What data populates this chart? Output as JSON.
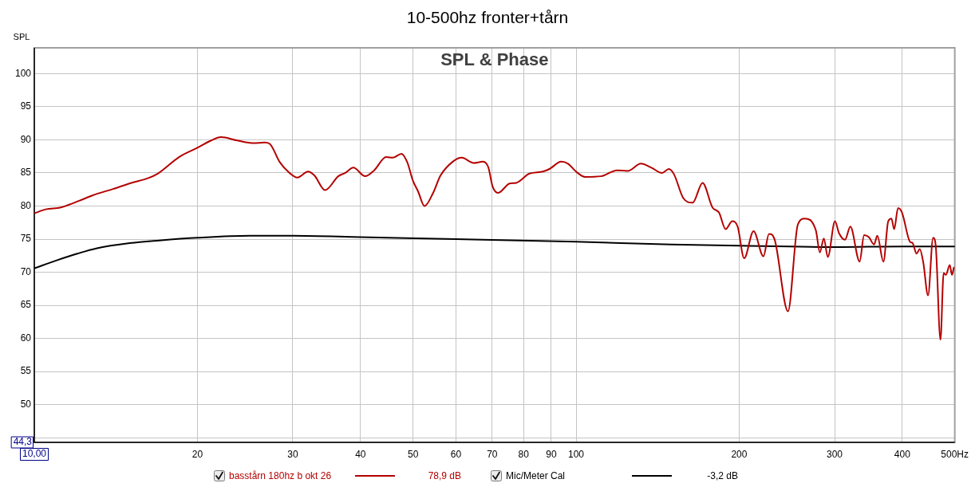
{
  "chart_data": {
    "type": "line",
    "title": "10-500hz fronter+tårn",
    "subtitle": "SPL & Phase",
    "ylabel": "SPL",
    "log": "x",
    "xlim": [
      10,
      500
    ],
    "xticks": [
      {
        "value": 10,
        "label": "10,00"
      },
      20,
      30,
      40,
      50,
      60,
      70,
      80,
      90,
      100,
      200,
      300,
      400,
      {
        "value": 500,
        "label": "500Hz"
      }
    ],
    "ylim": [
      44.3,
      103.9
    ],
    "yticks": [
      {
        "value": 44.3,
        "label": "44,3"
      },
      {
        "value": 45,
        "label": null
      },
      50,
      55,
      60,
      65,
      70,
      75,
      80,
      85,
      90,
      95,
      100
    ],
    "grid": true,
    "legend": "bottom",
    "annotations": [
      "78,9 dB",
      "-3,2 dB"
    ],
    "series": [
      {
        "name": "basstårn 180hz b okt 26",
        "color": "#b40000",
        "x": [
          10,
          10.5,
          11.2,
          12.1,
          12.8,
          14.0,
          15.1,
          16.2,
          16.9,
          18.5,
          20,
          21.2,
          22.1,
          23.7,
          25.4,
          26.6,
          27.2,
          28.4,
          29.4,
          30.6,
          32.0,
          32.9,
          34.4,
          36.4,
          37.5,
          38.8,
          40.8,
          42.4,
          44.6,
          45.9,
          47.6,
          48.8,
          50.0,
          51.1,
          52.5,
          54.4,
          56.2,
          59.2,
          61.5,
          64.7,
          67.3,
          68.9,
          70.1,
          71.8,
          75.4,
          77.5,
          82.0,
          86.8,
          89.3,
          93.9,
          96.6,
          100,
          103.9,
          111.2,
          119,
          124.5,
          131.7,
          137.7,
          144.1,
          148.3,
          151.6,
          157.7,
          164.1,
          171.2,
          178.5,
          183.6,
          188.8,
          194.2,
          198.7,
          204.3,
          212.6,
          221.7,
          227,
          232.6,
          246.1,
          256.6,
          264.2,
          277.1,
          281.8,
          286.6,
          291.5,
          300.5,
          305.7,
          313.6,
          320.8,
          333.7,
          340.1,
          347,
          354.9,
          359.7,
          369.2,
          376.8,
          382,
          386.4,
          392.9,
          399.6,
          413.3,
          417.9,
          425,
          430.9,
          437.3,
          446.3,
          456,
          461,
          470.5,
          476.9,
          481.3,
          489.5,
          494,
          498
        ],
        "values": [
          78.9,
          79.5,
          79.8,
          80.8,
          81.6,
          82.6,
          83.5,
          84.2,
          84.9,
          87.4,
          88.8,
          89.9,
          90.4,
          89.9,
          89.5,
          89.6,
          89.4,
          86.6,
          85.2,
          84.3,
          85.2,
          84.6,
          82.4,
          84.5,
          85.0,
          85.8,
          84.5,
          85.4,
          87.4,
          87.3,
          87.9,
          86.6,
          83.8,
          82.2,
          80.0,
          81.9,
          84.6,
          86.7,
          87.3,
          86.5,
          86.7,
          85.8,
          83.0,
          82.0,
          83.4,
          83.5,
          84.9,
          85.2,
          85.6,
          86.7,
          86.4,
          85.2,
          84.4,
          84.5,
          85.4,
          85.3,
          86.4,
          85.8,
          85.0,
          85.6,
          84.8,
          81.2,
          80.5,
          83.5,
          79.8,
          79.0,
          76.5,
          77.7,
          76.9,
          72.1,
          76.2,
          72.4,
          75.8,
          74.9,
          64.1,
          77.2,
          78.1,
          76.3,
          73.0,
          75.1,
          72.3,
          77.7,
          75.9,
          74.9,
          76.9,
          71.6,
          75.6,
          75.3,
          74.2,
          75.5,
          71.6,
          77.7,
          78.1,
          76.5,
          79.7,
          79.0,
          74.6,
          74.4,
          72.8,
          73.5,
          71.5,
          66.5,
          75.2,
          74.1,
          59.8,
          69.9,
          69.6,
          71.1,
          69.6,
          70.7
        ]
      },
      {
        "name": "Mic/Meter Cal",
        "color": "#000000",
        "x": [
          10,
          11,
          12,
          13,
          15,
          17,
          20,
          25,
          30,
          40,
          60,
          100,
          150,
          200,
          300,
          400,
          500
        ],
        "values": [
          70.6,
          71.8,
          72.8,
          73.6,
          74.4,
          74.8,
          75.2,
          75.5,
          75.5,
          75.3,
          75.0,
          74.6,
          74.2,
          74.0,
          73.8,
          73.9,
          73.9
        ]
      }
    ]
  }
}
